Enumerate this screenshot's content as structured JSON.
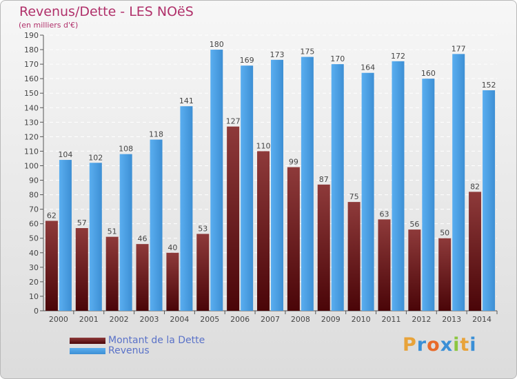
{
  "chart_data": {
    "type": "bar",
    "title": "Revenus/Dette - LES NOëS",
    "subtitle": "(en milliers d'€)",
    "categories": [
      "2000",
      "2001",
      "2002",
      "2003",
      "2004",
      "2005",
      "2006",
      "2007",
      "2008",
      "2009",
      "2010",
      "2011",
      "2012",
      "2013",
      "2014"
    ],
    "series": [
      {
        "name": "Montant de la Dette",
        "values": [
          62,
          57,
          51,
          46,
          40,
          53,
          127,
          110,
          99,
          87,
          75,
          63,
          56,
          50,
          82
        ],
        "color": "#7a1a1e"
      },
      {
        "name": "Revenus",
        "values": [
          104,
          102,
          108,
          118,
          141,
          180,
          169,
          173,
          175,
          170,
          164,
          172,
          160,
          177,
          152
        ],
        "color": "#4ea3e6"
      }
    ],
    "ylim": [
      0,
      190
    ],
    "ytick_step": 10,
    "grid": true,
    "data_labels": true,
    "legend": "bottom-left"
  },
  "logo": {
    "letters": [
      "P",
      "r",
      "o",
      "x",
      "i",
      "t",
      "i"
    ],
    "colors": [
      "#e8a33a",
      "#3a8fd6",
      "#e86a2a",
      "#3a8fd6",
      "#8cc63f",
      "#e8a33a",
      "#3a8fd6"
    ]
  }
}
